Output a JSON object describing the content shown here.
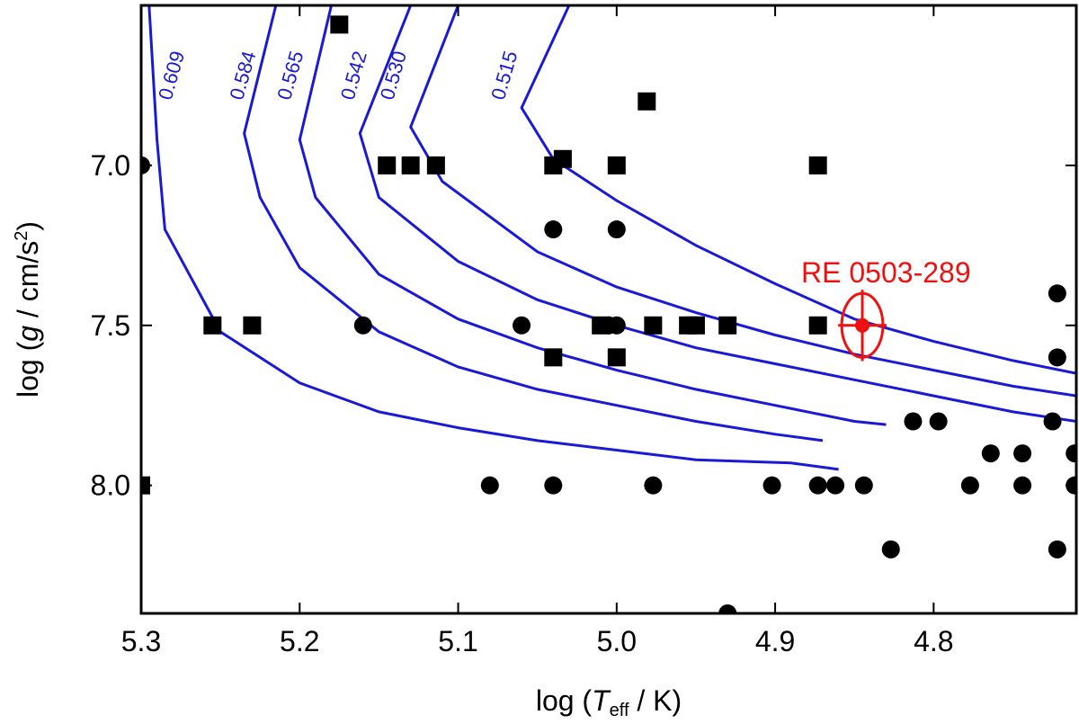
{
  "chart_data": {
    "type": "scatter",
    "title": "",
    "xlabel": {
      "prefix": "log (",
      "var": "T",
      "sub": "eff",
      "suffix": " / K)"
    },
    "ylabel": {
      "prefix": "log (",
      "var": "g",
      "unit": " / cm/s",
      "sup": "2",
      "suffix": ")"
    },
    "xlim": [
      5.3,
      4.71
    ],
    "ylim": [
      8.4,
      6.5
    ],
    "xticks": [
      5.3,
      5.2,
      5.1,
      5.0,
      4.9,
      4.8
    ],
    "xtick_labels": [
      "5.3",
      "5.2",
      "5.1",
      "5.0",
      "4.9",
      "4.8"
    ],
    "yticks": [
      7.0,
      7.5,
      8.0
    ],
    "ytick_labels": [
      "7.0",
      "7.5",
      "8.0"
    ],
    "colors": {
      "tracks": "#1a1ad6",
      "star": "#ee1111",
      "points": "#000000"
    },
    "tracks": [
      {
        "label": "0.609",
        "label_at": [
          5.28,
          6.72
        ],
        "points": [
          [
            5.295,
            6.5
          ],
          [
            5.29,
            6.92
          ],
          [
            5.285,
            7.2
          ],
          [
            5.25,
            7.52
          ],
          [
            5.2,
            7.68
          ],
          [
            5.15,
            7.77
          ],
          [
            5.1,
            7.82
          ],
          [
            5.05,
            7.86
          ],
          [
            5.0,
            7.89
          ],
          [
            4.95,
            7.92
          ],
          [
            4.89,
            7.93
          ],
          [
            4.86,
            7.95
          ]
        ]
      },
      {
        "label": "0.584",
        "label_at": [
          5.235,
          6.72
        ],
        "points": [
          [
            5.215,
            6.5
          ],
          [
            5.235,
            6.9
          ],
          [
            5.225,
            7.1
          ],
          [
            5.2,
            7.32
          ],
          [
            5.15,
            7.52
          ],
          [
            5.1,
            7.63
          ],
          [
            5.05,
            7.7
          ],
          [
            5.0,
            7.75
          ],
          [
            4.95,
            7.8
          ],
          [
            4.9,
            7.84
          ],
          [
            4.87,
            7.86
          ]
        ]
      },
      {
        "label": "0.565",
        "label_at": [
          5.205,
          6.72
        ],
        "points": [
          [
            5.18,
            6.5
          ],
          [
            5.2,
            6.92
          ],
          [
            5.19,
            7.1
          ],
          [
            5.15,
            7.34
          ],
          [
            5.1,
            7.48
          ],
          [
            5.05,
            7.57
          ],
          [
            5.0,
            7.64
          ],
          [
            4.95,
            7.7
          ],
          [
            4.9,
            7.75
          ],
          [
            4.85,
            7.8
          ],
          [
            4.83,
            7.81
          ]
        ]
      },
      {
        "label": "0.542",
        "label_at": [
          5.165,
          6.72
        ],
        "points": [
          [
            5.13,
            6.5
          ],
          [
            5.162,
            6.9
          ],
          [
            5.15,
            7.1
          ],
          [
            5.1,
            7.3
          ],
          [
            5.05,
            7.42
          ],
          [
            5.0,
            7.5
          ],
          [
            4.95,
            7.57
          ],
          [
            4.9,
            7.62
          ],
          [
            4.85,
            7.67
          ],
          [
            4.8,
            7.72
          ],
          [
            4.75,
            7.77
          ],
          [
            4.71,
            7.8
          ]
        ]
      },
      {
        "label": "0.530",
        "label_at": [
          5.14,
          6.72
        ],
        "points": [
          [
            5.1,
            6.5
          ],
          [
            5.13,
            6.88
          ],
          [
            5.11,
            7.05
          ],
          [
            5.05,
            7.27
          ],
          [
            5.0,
            7.38
          ],
          [
            4.95,
            7.46
          ],
          [
            4.9,
            7.53
          ],
          [
            4.85,
            7.59
          ],
          [
            4.8,
            7.64
          ],
          [
            4.75,
            7.69
          ],
          [
            4.71,
            7.72
          ]
        ]
      },
      {
        "label": "0.515",
        "label_at": [
          5.07,
          6.72
        ],
        "points": [
          [
            5.03,
            6.5
          ],
          [
            5.06,
            6.82
          ],
          [
            5.04,
            6.98
          ],
          [
            5.0,
            7.11
          ],
          [
            4.95,
            7.25
          ],
          [
            4.9,
            7.37
          ],
          [
            4.85,
            7.48
          ],
          [
            4.8,
            7.55
          ],
          [
            4.75,
            7.61
          ],
          [
            4.71,
            7.65
          ]
        ]
      }
    ],
    "series": [
      {
        "name": "squares",
        "marker": "square",
        "points": [
          [
            5.255,
            7.5
          ],
          [
            5.23,
            7.5
          ],
          [
            5.175,
            6.56
          ],
          [
            5.145,
            7.0
          ],
          [
            5.13,
            7.0
          ],
          [
            5.114,
            7.0
          ],
          [
            5.04,
            7.0
          ],
          [
            5.034,
            6.98
          ],
          [
            5.04,
            7.6
          ],
          [
            5.01,
            7.5
          ],
          [
            5.0,
            7.0
          ],
          [
            5.0,
            7.6
          ],
          [
            4.981,
            6.8
          ],
          [
            4.977,
            7.5
          ],
          [
            4.955,
            7.5
          ],
          [
            4.95,
            7.5
          ],
          [
            4.93,
            7.5
          ],
          [
            4.873,
            7.0
          ],
          [
            4.873,
            7.5
          ],
          [
            5.3,
            8.0
          ]
        ]
      },
      {
        "name": "circles",
        "marker": "circle",
        "points": [
          [
            5.3,
            7.0
          ],
          [
            5.16,
            7.5
          ],
          [
            5.08,
            8.0
          ],
          [
            5.06,
            7.5
          ],
          [
            5.04,
            7.2
          ],
          [
            5.04,
            8.0
          ],
          [
            5.005,
            7.5
          ],
          [
            5.0,
            7.5
          ],
          [
            5.0,
            7.2
          ],
          [
            4.977,
            8.0
          ],
          [
            4.93,
            8.4
          ],
          [
            4.902,
            8.0
          ],
          [
            4.873,
            8.0
          ],
          [
            4.862,
            8.0
          ],
          [
            4.844,
            8.0
          ],
          [
            4.827,
            8.2
          ],
          [
            4.813,
            7.8
          ],
          [
            4.797,
            7.8
          ],
          [
            4.777,
            8.0
          ],
          [
            4.764,
            7.9
          ],
          [
            4.744,
            7.9
          ],
          [
            4.744,
            8.0
          ],
          [
            4.725,
            7.8
          ],
          [
            4.722,
            7.4
          ],
          [
            4.722,
            7.6
          ],
          [
            4.722,
            8.2
          ],
          [
            4.711,
            7.9
          ],
          [
            4.711,
            8.0
          ]
        ]
      }
    ],
    "highlight": {
      "name": "RE 0503-289",
      "x": 4.845,
      "y": 7.5,
      "xerr": 0.013,
      "yerr": 0.1
    }
  }
}
